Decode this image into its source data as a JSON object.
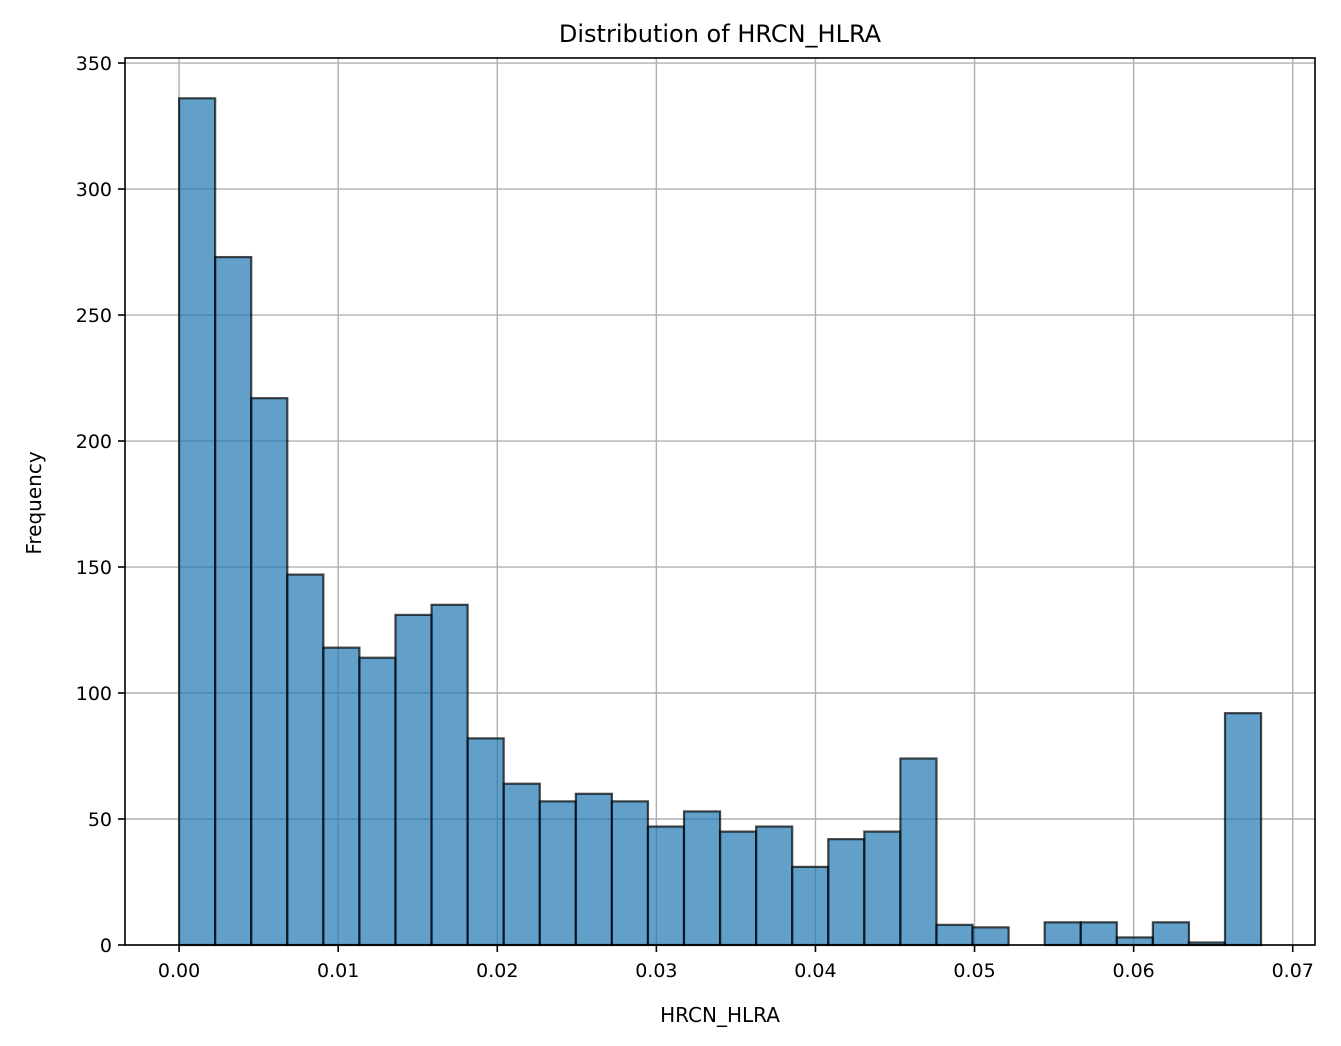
{
  "chart_data": {
    "type": "bar",
    "title": "Distribution of HRCN_HLRA",
    "xlabel": "HRCN_HLRA",
    "ylabel": "Frequency",
    "xlim": [
      -0.0034,
      0.0714
    ],
    "ylim": [
      0,
      352
    ],
    "grid": true,
    "x_ticks": [
      0.0,
      0.01,
      0.02,
      0.03,
      0.04,
      0.05,
      0.06,
      0.07
    ],
    "x_tick_labels": [
      "0.00",
      "0.01",
      "0.02",
      "0.03",
      "0.04",
      "0.05",
      "0.06",
      "0.07"
    ],
    "y_ticks": [
      0,
      50,
      100,
      150,
      200,
      250,
      300,
      350
    ],
    "y_tick_labels": [
      "0",
      "50",
      "100",
      "150",
      "200",
      "250",
      "300",
      "350"
    ],
    "bins": {
      "start": 0.0,
      "width": 0.002267,
      "counts": [
        336,
        273,
        217,
        147,
        118,
        114,
        131,
        135,
        82,
        64,
        57,
        60,
        57,
        47,
        53,
        45,
        47,
        31,
        42,
        45,
        74,
        8,
        7,
        0,
        9,
        9,
        3,
        9,
        1,
        92
      ]
    },
    "colors": {
      "bar_fill": "#1f77b4",
      "bar_edge": "#000000",
      "grid": "#b0b0b0"
    }
  }
}
